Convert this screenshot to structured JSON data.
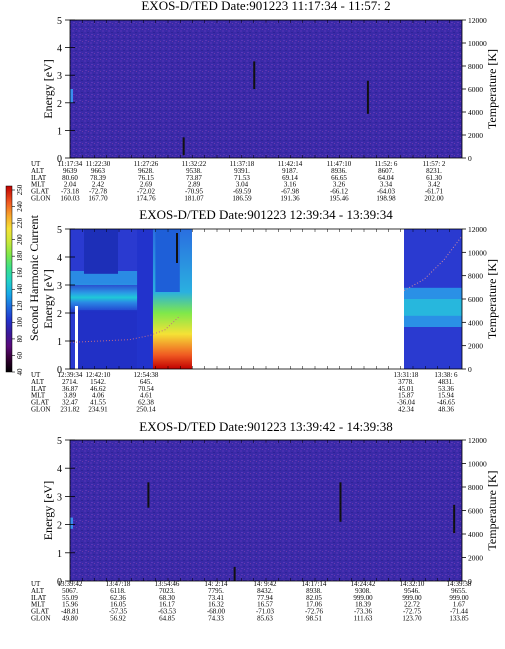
{
  "colorbar": {
    "label": "Second Harmonic Current",
    "ticks": [
      "40",
      "60",
      "80",
      "100",
      "120",
      "140",
      "160",
      "180",
      "200",
      "220",
      "240",
      "250"
    ],
    "colors": [
      "#000000",
      "#330033",
      "#5a0a7a",
      "#3a1a9a",
      "#2233cc",
      "#1e6bdd",
      "#17a9e8",
      "#22d1c8",
      "#3be08a",
      "#7fe84a",
      "#c9e83a",
      "#f5e236",
      "#f7a62c",
      "#f05a22",
      "#e01616",
      "#c00000"
    ]
  },
  "chart_data": [
    {
      "type": "heatmap",
      "title": "EXOS-D/TED   Date:901223  11:17:34 - 11:57: 2",
      "ylabel": "Energy [eV]",
      "y2label": "Temperature [K]",
      "ylim": [
        0,
        5
      ],
      "y2lim": [
        0,
        12000
      ],
      "yticks": [
        "0",
        "1",
        "2",
        "3",
        "4",
        "5"
      ],
      "y2ticks": [
        "0",
        "2000",
        "4000",
        "6000",
        "8000",
        "10000",
        "12000"
      ],
      "background_color": "#3a2aa8",
      "row_labels": [
        "UT",
        "ALT",
        "ILAT",
        "MLT",
        "GLAT",
        "GLON"
      ],
      "columns": [
        [
          "11:17:34",
          "9639",
          "80.60",
          "2.04",
          "-73.18",
          "160.03"
        ],
        [
          "11:22:30",
          "9663",
          "78.39",
          "2.42",
          "-72.78",
          "167.70"
        ],
        [
          "11:27:26",
          "9628.",
          "76.15",
          "2.69",
          "-72.02",
          "174.76"
        ],
        [
          "11:32:22",
          "9538.",
          "73.87",
          "2.89",
          "-70.95",
          "181.07"
        ],
        [
          "11:37:18",
          "9391.",
          "71.53",
          "3.04",
          "-69.59",
          "186.59"
        ],
        [
          "11:42:14",
          "9187.",
          "69.14",
          "3.16",
          "-67.98",
          "191.36"
        ],
        [
          "11:47:10",
          "8936.",
          "66.65",
          "3.26",
          "-66.12",
          "195.46"
        ],
        [
          "11:52: 6",
          "8607.",
          "64.04",
          "3.34",
          "-64.03",
          "198.98"
        ],
        [
          "11:57: 2",
          "8231.",
          "61.30",
          "3.42",
          "-61.71",
          "202.00"
        ]
      ],
      "features": [
        {
          "kind": "streak",
          "x": 0.47,
          "y0": 2.5,
          "y1": 3.5
        },
        {
          "kind": "streak",
          "x": 0.76,
          "y0": 1.6,
          "y1": 2.8
        },
        {
          "kind": "streak",
          "x": 0.29,
          "y0": 0.1,
          "y1": 0.75
        }
      ]
    },
    {
      "type": "heatmap",
      "title": "EXOS-D/TED   Date:901223  12:39:34 - 13:39:34",
      "ylabel": "Energy [eV]",
      "y2label": "Temperature [K]",
      "ylim": [
        0,
        5
      ],
      "y2lim": [
        0,
        12000
      ],
      "yticks": [
        "0",
        "1",
        "2",
        "3",
        "4",
        "5"
      ],
      "y2ticks": [
        "0",
        "2000",
        "4000",
        "6000",
        "8000",
        "10000",
        "12000"
      ],
      "row_labels": [
        "UT",
        "ALT",
        "ILAT",
        "MLT",
        "GLAT",
        "GLON"
      ],
      "columns": [
        [
          "12:39:34",
          "2714.",
          "36.87",
          "3.89",
          "32.47",
          "231.82"
        ],
        [
          "12:42:10",
          "1542.",
          "46.62",
          "4.06",
          "41.55",
          "234.91"
        ],
        [
          "12:54:38",
          "645.",
          "70.54",
          "4.61",
          "62.38",
          "250.14"
        ],
        [
          "13:31:18",
          "3778.",
          "45.01",
          "15.87",
          "-36.04",
          "42.34"
        ],
        [
          "13:38: 6",
          "4831.",
          "53.36",
          "15.94",
          "-46.65",
          "48.36"
        ]
      ],
      "data_gap": [
        "12:57:00",
        "13:31:00"
      ]
    },
    {
      "type": "heatmap",
      "title": "EXOS-D/TED   Date:901223  13:39:42 - 14:39:38",
      "ylabel": "Energy [eV]",
      "y2label": "Temperature [K]",
      "ylim": [
        0,
        5
      ],
      "y2lim": [
        0,
        12000
      ],
      "yticks": [
        "0",
        "1",
        "2",
        "3",
        "4",
        "5"
      ],
      "y2ticks": [
        "0",
        "2000",
        "4000",
        "6000",
        "8000",
        "10000",
        "12000"
      ],
      "background_color": "#3a2aa8",
      "row_labels": [
        "UT",
        "ALT",
        "ILAT",
        "MLT",
        "GLAT",
        "GLON"
      ],
      "columns": [
        [
          "13:39:42",
          "5067.",
          "55.09",
          "15.96",
          "-48.81",
          "49.80"
        ],
        [
          "13:47:18",
          "6118.",
          "62.36",
          "16.05",
          "-57.35",
          "56.92"
        ],
        [
          "13:54:46",
          "7023.",
          "68.30",
          "16.17",
          "-63.53",
          "64.85"
        ],
        [
          "14: 2:14",
          "7795.",
          "73.41",
          "16.32",
          "-68.00",
          "74.33"
        ],
        [
          "14: 9:42",
          "8432.",
          "77.94",
          "16.57",
          "-71.03",
          "85.63"
        ],
        [
          "14:17:14",
          "8938.",
          "82.05",
          "17.06",
          "-72.76",
          "98.51"
        ],
        [
          "14:24:42",
          "9308.",
          "999.00",
          "18.39",
          "-73.36",
          "111.63"
        ],
        [
          "14:32:10",
          "9546.",
          "999.00",
          "22.72",
          "-72.75",
          "123.70"
        ],
        [
          "14:39:38",
          "9655.",
          "999.00",
          "1.67",
          "-71.44",
          "133.85"
        ]
      ],
      "features": [
        {
          "kind": "streak",
          "x": 0.2,
          "y0": 2.6,
          "y1": 3.5
        },
        {
          "kind": "streak",
          "x": 0.69,
          "y0": 2.1,
          "y1": 3.5
        },
        {
          "kind": "streak",
          "x": 0.98,
          "y0": 1.7,
          "y1": 2.7
        },
        {
          "kind": "streak",
          "x": 0.42,
          "y0": 0.0,
          "y1": 0.5
        }
      ]
    }
  ]
}
